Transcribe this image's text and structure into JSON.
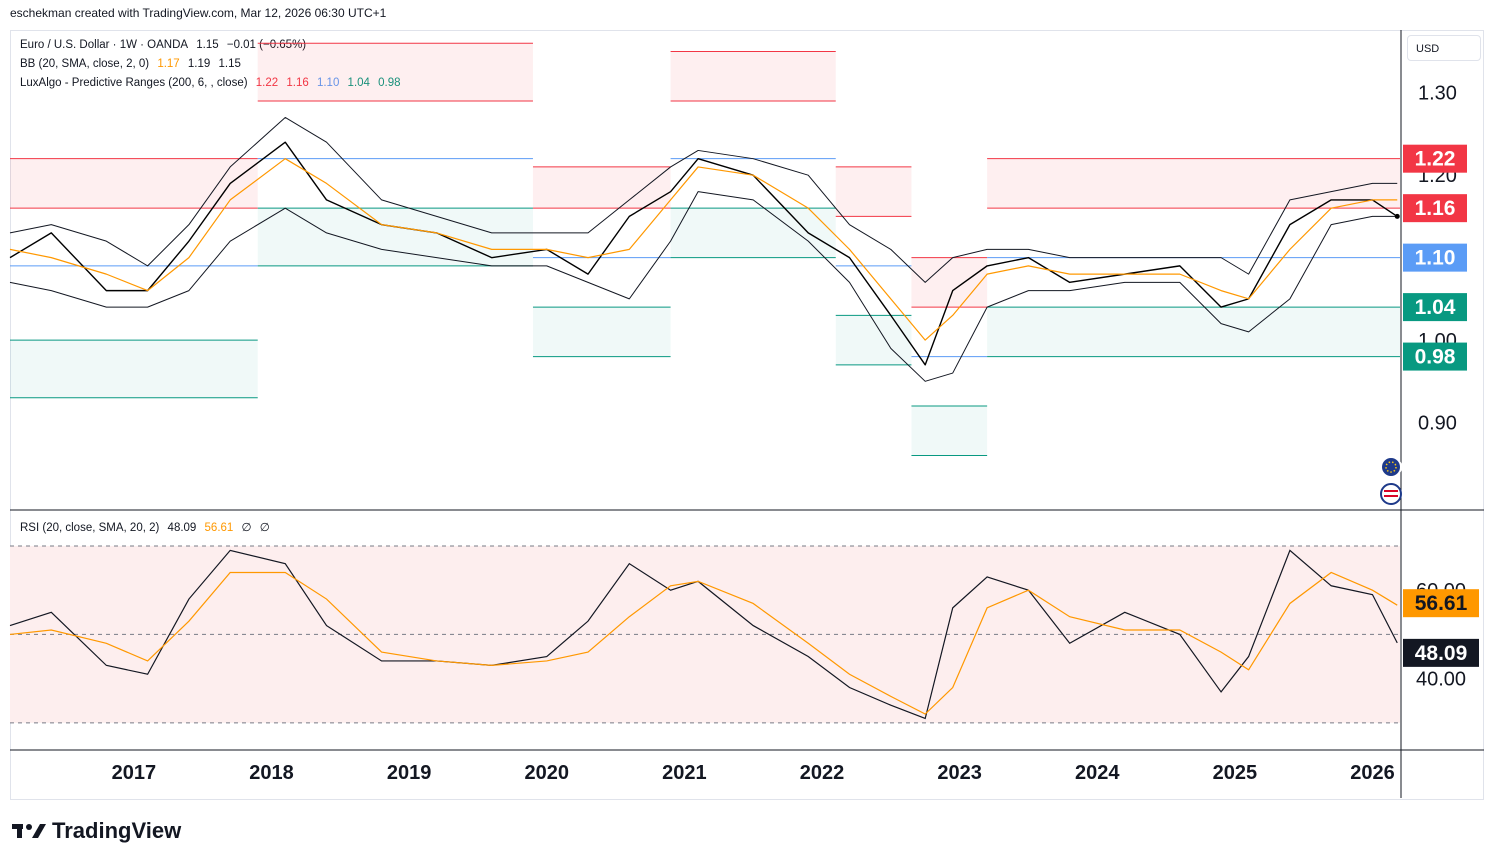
{
  "header": {
    "attribution": "eschekman created with TradingView.com, Mar 12, 2026 06:30 UTC+1"
  },
  "legend": {
    "symbol": "Euro / U.S. Dollar · 1W · OANDA",
    "last": "1.15",
    "change": "−0.01 (−0.65%)",
    "bb_label": "BB (20, SMA, close, 2, 0)",
    "bb_values": [
      "1.17",
      "1.19",
      "1.15"
    ],
    "luxalgo_label": "LuxAlgo - Predictive Ranges (200, 6, , close)",
    "luxalgo_values": [
      "1.22",
      "1.16",
      "1.10",
      "1.04",
      "0.98"
    ],
    "rsi_label": "RSI (20, close, SMA, 20, 2)",
    "rsi_values": [
      "48.09",
      "56.61",
      "∅",
      "∅"
    ]
  },
  "currency": "USD",
  "brand": "TradingView",
  "colors": {
    "upper_range": "#f23645",
    "mid_range": "#5b9cf6",
    "lower_range": "#089981",
    "bb_basis": "#ff9800",
    "price": "#000000",
    "rsi_ma": "#ff9800",
    "rsi_bg": "#fdeeee"
  },
  "badges": [
    {
      "label": "1.22",
      "color": "#f23645"
    },
    {
      "label": "1.16",
      "color": "#f23645"
    },
    {
      "label": "1.10",
      "color": "#5b9cf6"
    },
    {
      "label": "1.04",
      "color": "#089981"
    },
    {
      "label": "0.98",
      "color": "#089981"
    }
  ],
  "rsi_badges": [
    {
      "label": "56.61",
      "color": "#ff9800"
    },
    {
      "label": "48.09",
      "color": "#131722"
    }
  ],
  "chart_data": [
    {
      "type": "line",
      "title": "Euro / U.S. Dollar · 1W · OANDA",
      "ylabel": "USD",
      "ylim": [
        0.8,
        1.37
      ],
      "y_ticks": [
        "1.30",
        "0.90"
      ],
      "y_ticks_obscured": [
        "1.20",
        "1.00"
      ],
      "x_ticks": [
        "2017",
        "2018",
        "2019",
        "2020",
        "2021",
        "2022",
        "2023",
        "2024",
        "2025",
        "2026"
      ],
      "x": [
        2016.1,
        2016.4,
        2016.8,
        2017.1,
        2017.4,
        2017.7,
        2018.1,
        2018.4,
        2018.8,
        2019.2,
        2019.6,
        2020.0,
        2020.3,
        2020.6,
        2020.9,
        2021.1,
        2021.5,
        2021.9,
        2022.2,
        2022.5,
        2022.75,
        2022.95,
        2023.2,
        2023.5,
        2023.8,
        2024.2,
        2024.6,
        2024.9,
        2025.1,
        2025.4,
        2025.7,
        2026.0,
        2026.18
      ],
      "series": [
        {
          "name": "EURUSD close",
          "values": [
            1.1,
            1.13,
            1.06,
            1.06,
            1.12,
            1.19,
            1.24,
            1.17,
            1.14,
            1.13,
            1.1,
            1.11,
            1.08,
            1.15,
            1.18,
            1.22,
            1.2,
            1.13,
            1.1,
            1.03,
            0.97,
            1.06,
            1.09,
            1.1,
            1.07,
            1.08,
            1.09,
            1.04,
            1.05,
            1.14,
            1.17,
            1.17,
            1.15
          ]
        },
        {
          "name": "BB basis (SMA 20)",
          "values": [
            1.11,
            1.1,
            1.08,
            1.06,
            1.1,
            1.17,
            1.22,
            1.19,
            1.14,
            1.13,
            1.11,
            1.11,
            1.1,
            1.11,
            1.17,
            1.21,
            1.2,
            1.16,
            1.11,
            1.05,
            1.0,
            1.03,
            1.08,
            1.09,
            1.08,
            1.08,
            1.08,
            1.06,
            1.05,
            1.11,
            1.16,
            1.17,
            1.17
          ]
        },
        {
          "name": "BB upper",
          "values": [
            1.13,
            1.14,
            1.12,
            1.09,
            1.14,
            1.21,
            1.27,
            1.24,
            1.17,
            1.15,
            1.13,
            1.13,
            1.13,
            1.17,
            1.21,
            1.23,
            1.22,
            1.2,
            1.14,
            1.11,
            1.07,
            1.1,
            1.11,
            1.11,
            1.1,
            1.1,
            1.1,
            1.1,
            1.08,
            1.17,
            1.18,
            1.19,
            1.19
          ]
        },
        {
          "name": "BB lower",
          "values": [
            1.07,
            1.06,
            1.04,
            1.04,
            1.06,
            1.12,
            1.16,
            1.13,
            1.11,
            1.1,
            1.09,
            1.09,
            1.07,
            1.05,
            1.12,
            1.18,
            1.17,
            1.12,
            1.07,
            0.99,
            0.95,
            0.96,
            1.04,
            1.06,
            1.06,
            1.07,
            1.07,
            1.02,
            1.01,
            1.05,
            1.14,
            1.15,
            1.15
          ]
        }
      ],
      "predictive_ranges": [
        {
          "from": 2016.1,
          "to": 2017.9,
          "levels": [
            1.22,
            1.16,
            1.09,
            1.0,
            0.93
          ]
        },
        {
          "from": 2017.9,
          "to": 2019.9,
          "levels": [
            1.36,
            1.29,
            1.22,
            1.16,
            1.09
          ]
        },
        {
          "from": 2019.9,
          "to": 2020.9,
          "levels": [
            1.21,
            1.16,
            1.1,
            1.04,
            0.98
          ]
        },
        {
          "from": 2020.9,
          "to": 2022.1,
          "levels": [
            1.35,
            1.29,
            1.22,
            1.16,
            1.1
          ]
        },
        {
          "from": 2022.1,
          "to": 2022.65,
          "levels": [
            1.21,
            1.15,
            1.09,
            1.03,
            0.97
          ]
        },
        {
          "from": 2022.65,
          "to": 2023.2,
          "levels": [
            1.1,
            1.04,
            0.98,
            0.92,
            0.86
          ]
        },
        {
          "from": 2023.2,
          "to": 2026.2,
          "levels": [
            1.22,
            1.16,
            1.1,
            1.04,
            0.98
          ]
        }
      ]
    },
    {
      "type": "line",
      "title": "RSI (20, close, SMA, 20, 2)",
      "ylim": [
        25,
        77
      ],
      "band": [
        30,
        70
      ],
      "midline": 50,
      "y_ticks": [
        "40.00"
      ],
      "y_ticks_obscured": [
        "60.00"
      ],
      "x": [
        2016.1,
        2016.4,
        2016.8,
        2017.1,
        2017.4,
        2017.7,
        2018.1,
        2018.4,
        2018.8,
        2019.2,
        2019.6,
        2020.0,
        2020.3,
        2020.6,
        2020.9,
        2021.1,
        2021.5,
        2021.9,
        2022.2,
        2022.5,
        2022.75,
        2022.95,
        2023.2,
        2023.5,
        2023.8,
        2024.2,
        2024.6,
        2024.9,
        2025.1,
        2025.4,
        2025.7,
        2026.0,
        2026.18
      ],
      "series": [
        {
          "name": "RSI",
          "values": [
            52,
            55,
            43,
            41,
            58,
            69,
            66,
            52,
            44,
            44,
            43,
            45,
            53,
            66,
            60,
            62,
            52,
            45,
            38,
            34,
            31,
            56,
            63,
            60,
            48,
            55,
            50,
            37,
            45,
            69,
            61,
            59,
            48.09
          ]
        },
        {
          "name": "RSI-based MA",
          "values": [
            50,
            51,
            48,
            44,
            53,
            64,
            64,
            58,
            46,
            44,
            43,
            44,
            46,
            54,
            61,
            62,
            57,
            48,
            41,
            36,
            32,
            38,
            56,
            60,
            54,
            51,
            51,
            46,
            42,
            57,
            64,
            60,
            56.61
          ]
        }
      ]
    }
  ]
}
